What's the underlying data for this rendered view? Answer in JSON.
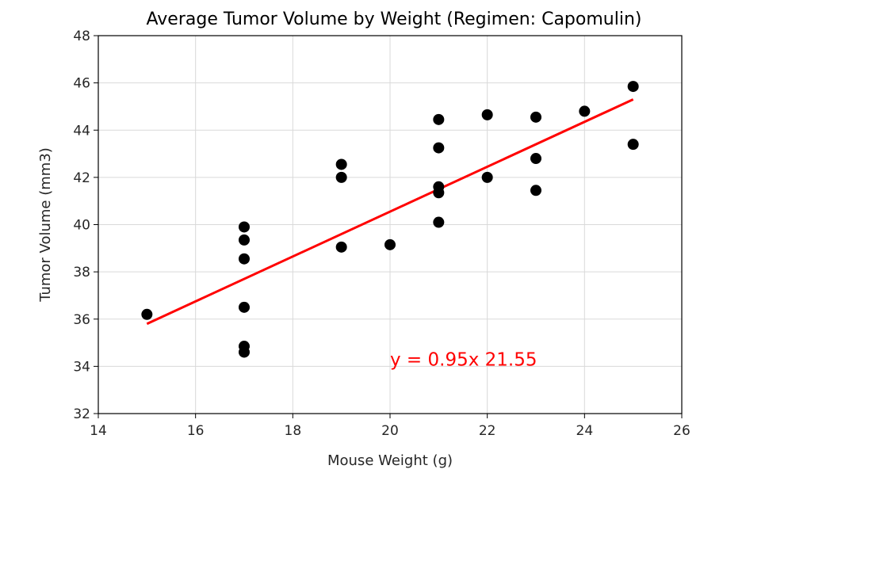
{
  "chart_data": {
    "type": "scatter",
    "title": "Average Tumor Volume by Weight (Regimen: Capomulin)",
    "xlabel": "Mouse Weight (g)",
    "ylabel": "Tumor Volume (mm3)",
    "xlim": [
      14,
      26
    ],
    "ylim": [
      32,
      48
    ],
    "xticks": [
      14,
      16,
      18,
      20,
      22,
      24,
      26
    ],
    "yticks": [
      32,
      34,
      36,
      38,
      40,
      42,
      44,
      46,
      48
    ],
    "grid": true,
    "points": [
      {
        "x": 15,
        "y": 36.2
      },
      {
        "x": 17,
        "y": 39.9
      },
      {
        "x": 17,
        "y": 39.35
      },
      {
        "x": 17,
        "y": 38.55
      },
      {
        "x": 17,
        "y": 36.5
      },
      {
        "x": 17,
        "y": 34.85
      },
      {
        "x": 17,
        "y": 34.6
      },
      {
        "x": 19,
        "y": 42.55
      },
      {
        "x": 19,
        "y": 42.0
      },
      {
        "x": 19,
        "y": 39.05
      },
      {
        "x": 20,
        "y": 39.15
      },
      {
        "x": 21,
        "y": 44.45
      },
      {
        "x": 21,
        "y": 43.25
      },
      {
        "x": 21,
        "y": 41.6
      },
      {
        "x": 21,
        "y": 41.35
      },
      {
        "x": 21,
        "y": 40.1
      },
      {
        "x": 22,
        "y": 44.65
      },
      {
        "x": 22,
        "y": 42.0
      },
      {
        "x": 23,
        "y": 44.55
      },
      {
        "x": 23,
        "y": 42.8
      },
      {
        "x": 23,
        "y": 41.45
      },
      {
        "x": 24,
        "y": 44.8
      },
      {
        "x": 25,
        "y": 45.85
      },
      {
        "x": 25,
        "y": 43.4
      }
    ],
    "regression": {
      "slope": 0.95,
      "intercept": 21.55,
      "x_start": 15,
      "x_end": 25
    },
    "annotation": {
      "text": "y = 0.95x 21.55",
      "x": 20,
      "y": 34
    },
    "colors": {
      "points": "#000000",
      "line": "#ff0000",
      "annotation": "#ff0000",
      "grid": "#d9d9d9"
    }
  }
}
